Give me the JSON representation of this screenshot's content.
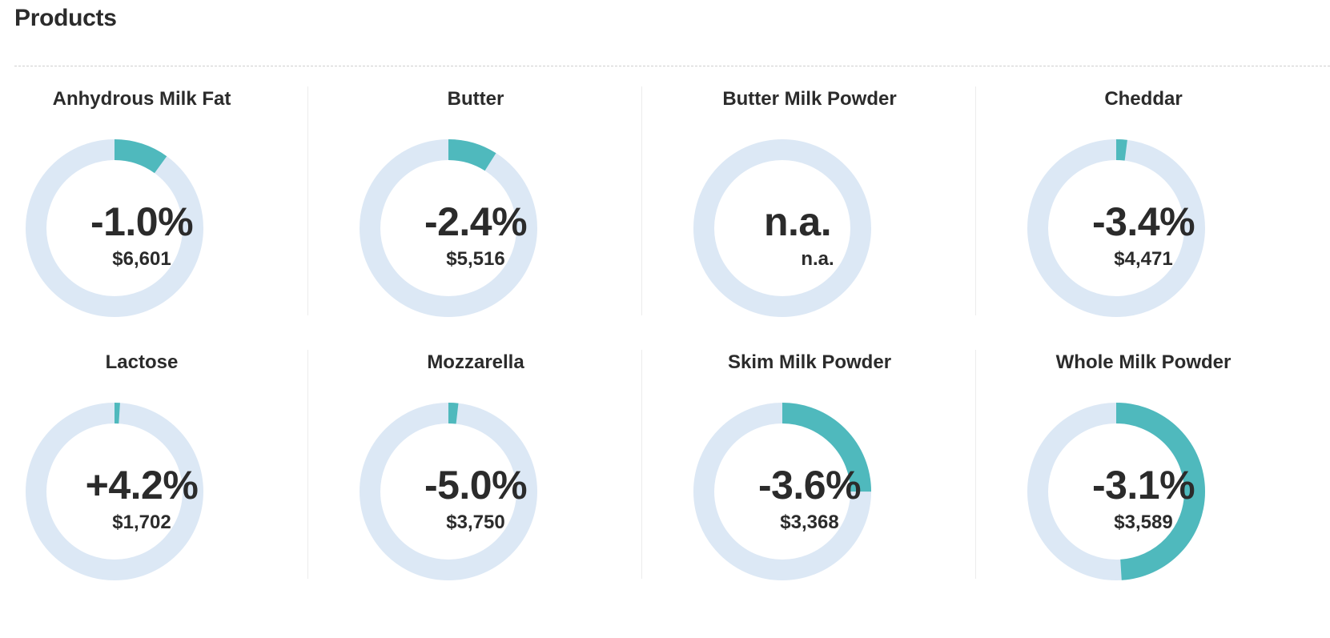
{
  "page": {
    "title": "Products"
  },
  "colors": {
    "track": "#dce8f5",
    "fill": "#4fb9bd",
    "text": "#2b2b2b"
  },
  "products": [
    {
      "name": "Anhydrous Milk Fat",
      "change": "-1.0%",
      "price": "$6,601",
      "fill_fraction": 0.1
    },
    {
      "name": "Butter",
      "change": "-2.4%",
      "price": "$5,516",
      "fill_fraction": 0.09
    },
    {
      "name": "Butter Milk Powder",
      "change": "n.a.",
      "price": "n.a.",
      "fill_fraction": 0.0
    },
    {
      "name": "Cheddar",
      "change": "-3.4%",
      "price": "$4,471",
      "fill_fraction": 0.02
    },
    {
      "name": "Lactose",
      "change": "+4.2%",
      "price": "$1,702",
      "fill_fraction": 0.01
    },
    {
      "name": "Mozzarella",
      "change": "-5.0%",
      "price": "$3,750",
      "fill_fraction": 0.018
    },
    {
      "name": "Skim Milk Powder",
      "change": "-3.6%",
      "price": "$3,368",
      "fill_fraction": 0.25
    },
    {
      "name": "Whole Milk Powder",
      "change": "-3.1%",
      "price": "$3,589",
      "fill_fraction": 0.49
    }
  ]
}
